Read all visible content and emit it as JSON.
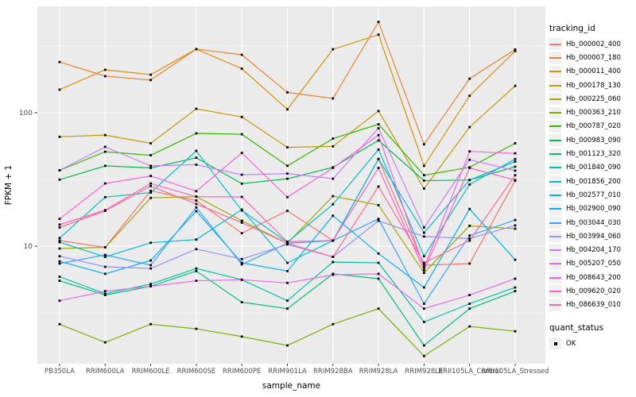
{
  "theme": {
    "background": "#ffffff",
    "panel_bg": "#ebebeb",
    "grid_color": "#ffffff",
    "tick_label_color": "#4d4d4d",
    "axis_title_color": "#000000",
    "tick_mark_color": "#333333",
    "point_color": "#000000",
    "legend_key_bg": "#f0f0f0"
  },
  "chart_data": {
    "type": "line",
    "title": "",
    "xlabel": "sample_name",
    "ylabel": "FPKM + 1",
    "y_scale": "log10",
    "y_tick_labels": [
      "100",
      "10"
    ],
    "y_tick_values": [
      100,
      10
    ],
    "y_minor_gridline_values": [
      316.23,
      31.62,
      3.162
    ],
    "y_range_approx": [
      1.3,
      630
    ],
    "grid": "on",
    "legend_position": "right",
    "point_marker": "small black square (quant_status = OK)",
    "categories": [
      "PB350LA",
      "RRIM600LA",
      "RRIM600LE",
      "RRIM600SE",
      "RRIM600PE",
      "RRIM901LA",
      "RRIM928BA",
      "RRIM928LA",
      "RRIM928LE",
      "RRII105LA_Control",
      "RRII105LA_Stressed"
    ],
    "series": [
      {
        "name": "Hb_000002_400",
        "color": "#F8766D",
        "values": [
          11,
          9.8,
          26,
          22,
          12.5,
          18.4,
          11,
          45,
          7.2,
          7.4,
          31
        ]
      },
      {
        "name": "Hb_000007_180",
        "color": "#EA8331",
        "values": [
          240,
          188,
          176,
          300,
          272,
          142,
          128,
          480,
          58,
          180,
          298
        ]
      },
      {
        "name": "Hb_000011_400",
        "color": "#D89000",
        "values": [
          149,
          210,
          193,
          300,
          214,
          106,
          299,
          385,
          40,
          134,
          290
        ]
      },
      {
        "name": "Hb_000178_130",
        "color": "#C09B00",
        "values": [
          66,
          68,
          59,
          107,
          93,
          55,
          56,
          103,
          27,
          78,
          159
        ]
      },
      {
        "name": "Hb_000225_060",
        "color": "#A3A500",
        "values": [
          9.6,
          9.8,
          23,
          23.5,
          15.5,
          10.5,
          23.7,
          20.3,
          6.3,
          14.2,
          13.5
        ]
      },
      {
        "name": "Hb_000363_210",
        "color": "#7CAE00",
        "values": [
          2.6,
          1.9,
          2.6,
          2.4,
          2.1,
          1.8,
          2.6,
          3.4,
          1.5,
          2.5,
          2.3
        ]
      },
      {
        "name": "Hb_000787_020",
        "color": "#39B600",
        "values": [
          37,
          51,
          48,
          70,
          69,
          40,
          64,
          82,
          34,
          39,
          59
        ]
      },
      {
        "name": "Hb_000983_090",
        "color": "#00BB4E",
        "values": [
          31.5,
          40,
          38.6,
          46,
          29.4,
          32,
          39,
          62,
          31,
          31.3,
          39.4
        ]
      },
      {
        "name": "Hb_001123_320",
        "color": "#00BF7D",
        "values": [
          5.5,
          4.3,
          5.0,
          6.5,
          3.8,
          3.4,
          6.2,
          5.7,
          1.8,
          3.4,
          4.6
        ]
      },
      {
        "name": "Hb_001840_090",
        "color": "#00C1A3",
        "values": [
          5.9,
          4.4,
          5.2,
          6.8,
          5.6,
          3.9,
          7.6,
          7.5,
          2.7,
          3.7,
          4.9
        ]
      },
      {
        "name": "Hb_001856_200",
        "color": "#00BFC4",
        "values": [
          11.5,
          23.3,
          25.2,
          51.8,
          18.5,
          10.7,
          20.6,
          53,
          8.4,
          29,
          45
        ]
      },
      {
        "name": "Hb_002577_010",
        "color": "#00BBDA",
        "values": [
          10.7,
          8.3,
          10.6,
          11.2,
          18.8,
          7.5,
          11,
          45,
          12.6,
          31.3,
          43
        ]
      },
      {
        "name": "Hb_002900_090",
        "color": "#00B0F6",
        "values": [
          7.7,
          6.2,
          7.8,
          18.3,
          7.5,
          6.5,
          16.9,
          8.8,
          4.9,
          19,
          7.9
        ]
      },
      {
        "name": "Hb_003044_030",
        "color": "#35A2FF",
        "values": [
          7.4,
          8.6,
          7.2,
          19.5,
          7.3,
          10.5,
          11,
          16,
          3.7,
          12,
          15.7
        ]
      },
      {
        "name": "Hb_003994_060",
        "color": "#9590FF",
        "values": [
          8.4,
          7.0,
          6.8,
          9.5,
          8.0,
          10.3,
          8.3,
          15.5,
          11.8,
          11.4,
          14.3
        ]
      },
      {
        "name": "Hb_004204_170",
        "color": "#C77CFF",
        "values": [
          37,
          55.5,
          40,
          40.8,
          34.3,
          35,
          32,
          76.5,
          13.8,
          44.4,
          36.8
        ]
      },
      {
        "name": "Hb_005207_050",
        "color": "#E76BF3",
        "values": [
          3.9,
          4.6,
          5.0,
          5.5,
          5.6,
          5.3,
          6.1,
          6.2,
          3.4,
          4.3,
          5.7
        ]
      },
      {
        "name": "Hb_008643_200",
        "color": "#FA62DB",
        "values": [
          16,
          29.5,
          33.6,
          25.8,
          50,
          23.3,
          38.6,
          68,
          6.9,
          51.3,
          49.6
        ]
      },
      {
        "name": "Hb_009620_020",
        "color": "#FF62BC",
        "values": [
          14.5,
          18.6,
          29.5,
          23.5,
          23.4,
          10.8,
          11,
          38.6,
          6.6,
          38.6,
          31.3
        ]
      },
      {
        "name": "Hb_086639_010",
        "color": "#FF6A98",
        "values": [
          13.8,
          18.4,
          28.2,
          20.7,
          15,
          10.5,
          8.3,
          28,
          7.5,
          11,
          34
        ]
      }
    ],
    "legend": {
      "tracking_title": "tracking_id",
      "quant_title": "quant_status",
      "quant_items": [
        {
          "label": "OK"
        }
      ]
    }
  }
}
